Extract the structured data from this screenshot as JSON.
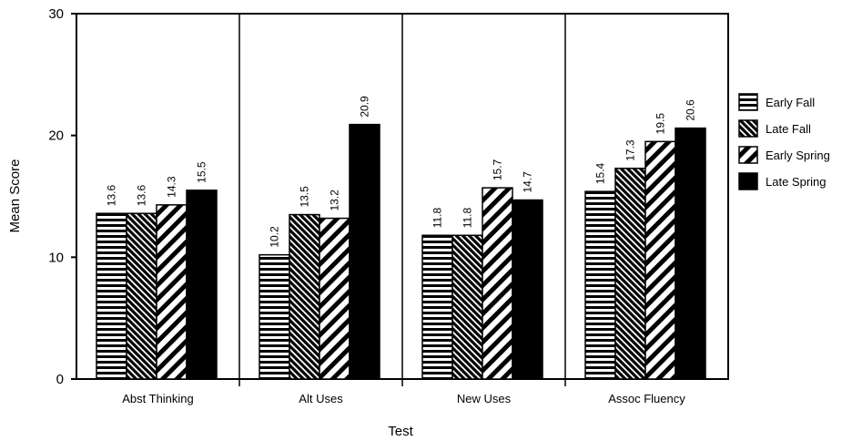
{
  "chart_data": {
    "type": "bar",
    "title": "",
    "xlabel": "Test",
    "ylabel": "Mean Score",
    "ylim": [
      0,
      30
    ],
    "yticks": [
      0,
      10,
      20,
      30
    ],
    "grid": false,
    "legend_position": "right",
    "categories": [
      "Abst Thinking",
      "Alt Uses",
      "New Uses",
      "Assoc Fluency"
    ],
    "series": [
      {
        "name": "Early Fall",
        "pattern": "horizontal-stripes",
        "values": [
          13.6,
          10.2,
          11.8,
          15.4
        ],
        "labels": [
          "13.6",
          "10.2",
          "11.8",
          "15.4"
        ]
      },
      {
        "name": "Late Fall",
        "pattern": "dense-diagonal",
        "values": [
          13.6,
          13.5,
          11.8,
          17.3
        ],
        "labels": [
          "13.6",
          "13.5",
          "11.8",
          "17.3"
        ]
      },
      {
        "name": "Early Spring",
        "pattern": "wide-diagonal",
        "values": [
          14.3,
          13.2,
          15.7,
          19.5
        ],
        "labels": [
          "14.3",
          "13.2",
          "15.7",
          "19.5"
        ]
      },
      {
        "name": "Late Spring",
        "pattern": "solid",
        "values": [
          15.5,
          20.9,
          14.7,
          20.6
        ],
        "labels": [
          "15.5",
          "20.9",
          "14.7",
          "20.6"
        ]
      }
    ],
    "colors": {
      "ink": "#000000",
      "background": "#ffffff"
    }
  }
}
